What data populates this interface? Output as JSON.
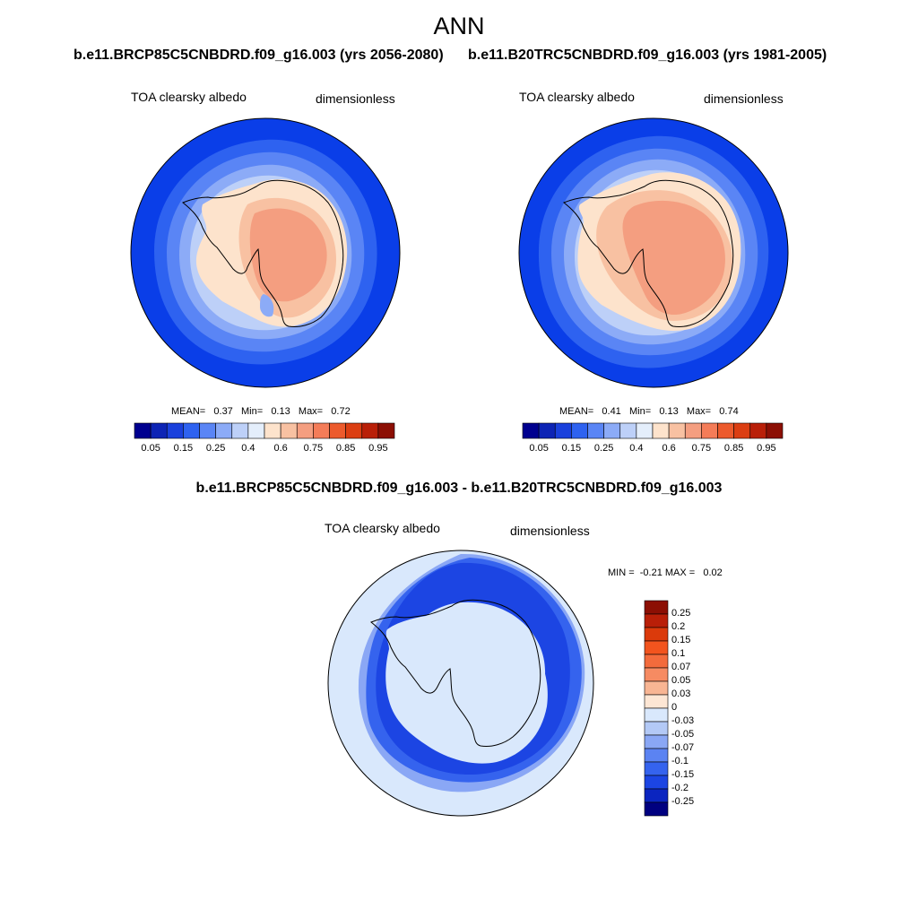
{
  "figure": {
    "title": "ANN",
    "panel_left_title": "b.e11.BRCP85C5CNBDRD.f09_g16.003 (yrs 2056-2080)",
    "panel_right_title": "b.e11.B20TRC5CNBDRD.f09_g16.003 (yrs 1981-2005)",
    "diff_title": "b.e11.BRCP85C5CNBDRD.f09_g16.003 - b.e11.B20TRC5CNBDRD.f09_g16.003"
  },
  "panels": [
    {
      "variable": "TOA clearsky albedo",
      "units": "dimensionless",
      "mean_label": "MEAN=",
      "mean": "0.37",
      "min_label": "Min=",
      "min": "0.13",
      "max_label": "Max=",
      "max": "0.72"
    },
    {
      "variable": "TOA clearsky albedo",
      "units": "dimensionless",
      "mean_label": "MEAN=",
      "mean": "0.41",
      "min_label": "Min=",
      "min": "0.13",
      "max_label": "Max=",
      "max": "0.74"
    }
  ],
  "diff_panel": {
    "variable": "TOA clearsky albedo",
    "units": "dimensionless",
    "stats_text": "MIN =  -0.21 MAX =   0.02"
  },
  "colorbar": {
    "colors": [
      "#00008f",
      "#0d24b5",
      "#1a40dc",
      "#2e62f0",
      "#5a85f5",
      "#8cabf7",
      "#bdd0f8",
      "#e4eefb",
      "#fde3cc",
      "#f8c1a2",
      "#f49e80",
      "#f47c58",
      "#ec5a2c",
      "#db3e12",
      "#b91f08",
      "#8c0f04"
    ],
    "tick_labels": [
      "0.05",
      "0.15",
      "0.25",
      "0.4",
      "0.6",
      "0.75",
      "0.85",
      "0.95"
    ]
  },
  "diff_colorbar": {
    "colors": [
      "#8c0f04",
      "#b91f08",
      "#db3a0b",
      "#f2541e",
      "#f36b3c",
      "#f68b62",
      "#f8b593",
      "#fde6d4",
      "#d9e8fc",
      "#b3c9f6",
      "#8aa7f5",
      "#5b83f2",
      "#3563ee",
      "#1c45e3",
      "#0b25c0",
      "#000080"
    ],
    "tick_labels": [
      "0.25",
      "0.2",
      "0.15",
      "0.1",
      "0.07",
      "0.05",
      "0.03",
      "0",
      "-0.03",
      "-0.05",
      "-0.07",
      "-0.1",
      "-0.15",
      "-0.2",
      "-0.25"
    ]
  },
  "map_palette": {
    "ocean_outer": "#0a3ee8",
    "ocean_2": "#2e62f0",
    "ocean_3": "#5a85f5",
    "ocean_4": "#8cabf7",
    "ocean_5": "#bdd0f8",
    "ocean_6": "#e4eefb",
    "ice_1": "#fde3cc",
    "ice_2": "#f8c1a2",
    "ice_3": "#f49e80",
    "diff_bg": "#d9e8fc",
    "diff_1": "#8aa7f5",
    "diff_2": "#3563ee",
    "diff_3": "#1c45e3"
  }
}
